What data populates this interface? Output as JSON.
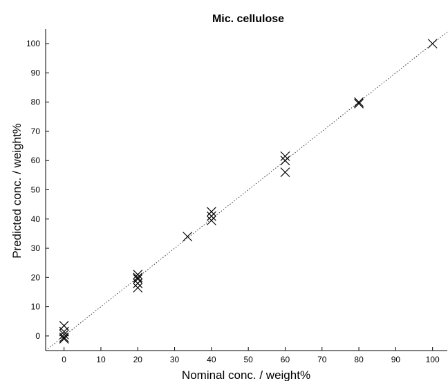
{
  "chart_data": {
    "type": "scatter",
    "title": "Mic. cellulose",
    "xlabel": "Nominal conc. / weight%",
    "ylabel": "Predicted conc. / weight%",
    "xlim": [
      -5,
      104
    ],
    "ylim": [
      -5,
      105
    ],
    "xticks": [
      0,
      10,
      20,
      30,
      40,
      50,
      60,
      70,
      80,
      90,
      100
    ],
    "yticks": [
      0,
      10,
      20,
      30,
      40,
      50,
      60,
      70,
      80,
      90,
      100
    ],
    "grid": false,
    "marker": "x",
    "marker_color": "#000000",
    "reference_line": {
      "style": "dotted",
      "from": [
        -5,
        -5
      ],
      "to": [
        104,
        104
      ]
    },
    "series": [
      {
        "x": [
          0,
          0,
          0,
          0,
          0,
          20,
          20,
          20,
          20,
          20,
          33.5,
          40,
          40,
          40,
          60,
          60,
          60,
          80,
          80,
          100
        ],
        "y": [
          3.5,
          1.5,
          0.5,
          -0.5,
          -1,
          21,
          20,
          18,
          16.5,
          19.5,
          34,
          42.5,
          41,
          39.5,
          61.5,
          60,
          56,
          80,
          79.5,
          100
        ]
      }
    ]
  }
}
